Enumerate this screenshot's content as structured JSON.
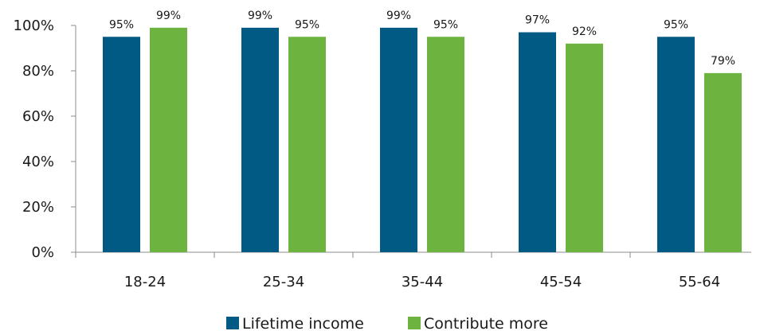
{
  "chart_data": {
    "type": "bar",
    "title": "",
    "xlabel": "",
    "ylabel": "",
    "categories": [
      "18-24",
      "25-34",
      "35-44",
      "45-54",
      "55-64"
    ],
    "series": [
      {
        "name": "Lifetime income",
        "color": "#005a84",
        "values": [
          95,
          99,
          99,
          97,
          95
        ],
        "labels": [
          "95%",
          "99%",
          "99%",
          "97%",
          "95%"
        ]
      },
      {
        "name": "Contribute more",
        "color": "#6cb33f",
        "values": [
          99,
          95,
          95,
          92,
          79
        ],
        "labels": [
          "99%",
          "95%",
          "95%",
          "92%",
          "79%"
        ]
      }
    ],
    "ylim": [
      0,
      100
    ],
    "yticks": [
      0,
      20,
      40,
      60,
      80,
      100
    ],
    "ytick_labels": [
      "0%",
      "20%",
      "40%",
      "60%",
      "80%",
      "100%"
    ],
    "grid": false,
    "legend_position": "bottom-center"
  }
}
